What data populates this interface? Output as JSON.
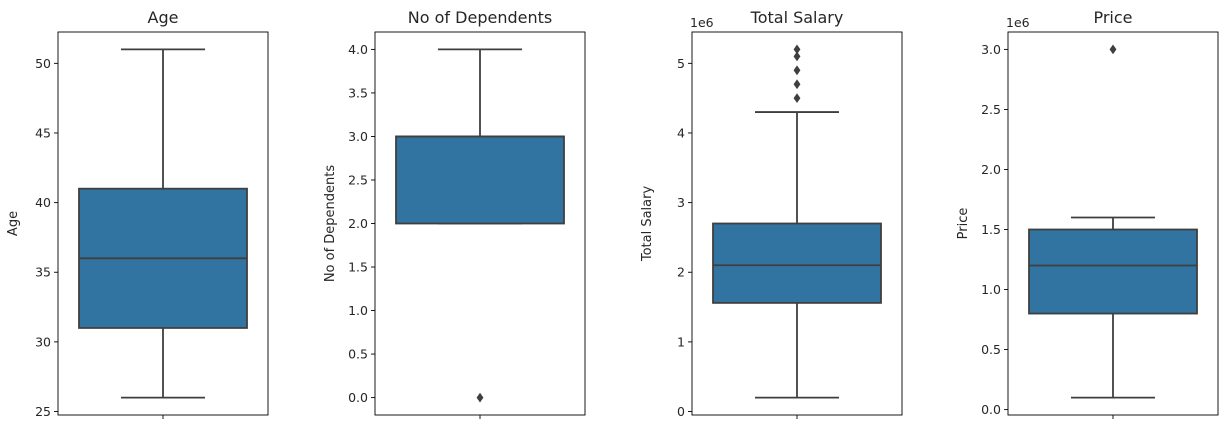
{
  "chart_data": [
    {
      "type": "box",
      "title": "Age",
      "ylabel": "Age",
      "offset_label": "",
      "ylim": [
        24.75,
        52.25
      ],
      "yticks": [
        25,
        30,
        35,
        40,
        45,
        50
      ],
      "ytick_labels": [
        "25",
        "30",
        "35",
        "40",
        "45",
        "50"
      ],
      "box": {
        "whisker_low": 26,
        "q1": 31,
        "median": 36,
        "q3": 41,
        "whisker_high": 51
      },
      "outliers": [],
      "color": "#3274a1",
      "edge_color": "#3f3f3f"
    },
    {
      "type": "box",
      "title": "No of Dependents",
      "ylabel": "No of Dependents",
      "offset_label": "",
      "ylim": [
        -0.2,
        4.2
      ],
      "yticks": [
        0.0,
        0.5,
        1.0,
        1.5,
        2.0,
        2.5,
        3.0,
        3.5,
        4.0
      ],
      "ytick_labels": [
        "0.0",
        "0.5",
        "1.0",
        "1.5",
        "2.0",
        "2.5",
        "3.0",
        "3.5",
        "4.0"
      ],
      "box": {
        "whisker_low": 2,
        "q1": 2,
        "median": 3,
        "q3": 3,
        "whisker_high": 4
      },
      "outliers": [
        0
      ],
      "color": "#3274a1",
      "edge_color": "#3f3f3f"
    },
    {
      "type": "box",
      "title": "Total Salary",
      "ylabel": "Total Salary",
      "offset_label": "1e6",
      "ylim": [
        -0.05,
        5.45
      ],
      "yticks": [
        0,
        1,
        2,
        3,
        4,
        5
      ],
      "ytick_labels": [
        "0",
        "1",
        "2",
        "3",
        "4",
        "5"
      ],
      "box": {
        "whisker_low": 0.2,
        "q1": 1.56,
        "median": 2.1,
        "q3": 2.7,
        "whisker_high": 4.3
      },
      "outliers": [
        4.5,
        4.7,
        4.9,
        5.1,
        5.2
      ],
      "color": "#3274a1",
      "edge_color": "#3f3f3f"
    },
    {
      "type": "box",
      "title": "Price",
      "ylabel": "Price",
      "offset_label": "1e6",
      "ylim": [
        -0.045,
        3.145
      ],
      "yticks": [
        0.0,
        0.5,
        1.0,
        1.5,
        2.0,
        2.5,
        3.0
      ],
      "ytick_labels": [
        "0.0",
        "0.5",
        "1.0",
        "1.5",
        "2.0",
        "2.5",
        "3.0"
      ],
      "box": {
        "whisker_low": 0.1,
        "q1": 0.8,
        "median": 1.2,
        "q3": 1.5,
        "whisker_high": 1.6
      },
      "outliers": [
        3.0
      ],
      "color": "#3274a1",
      "edge_color": "#3f3f3f"
    }
  ]
}
